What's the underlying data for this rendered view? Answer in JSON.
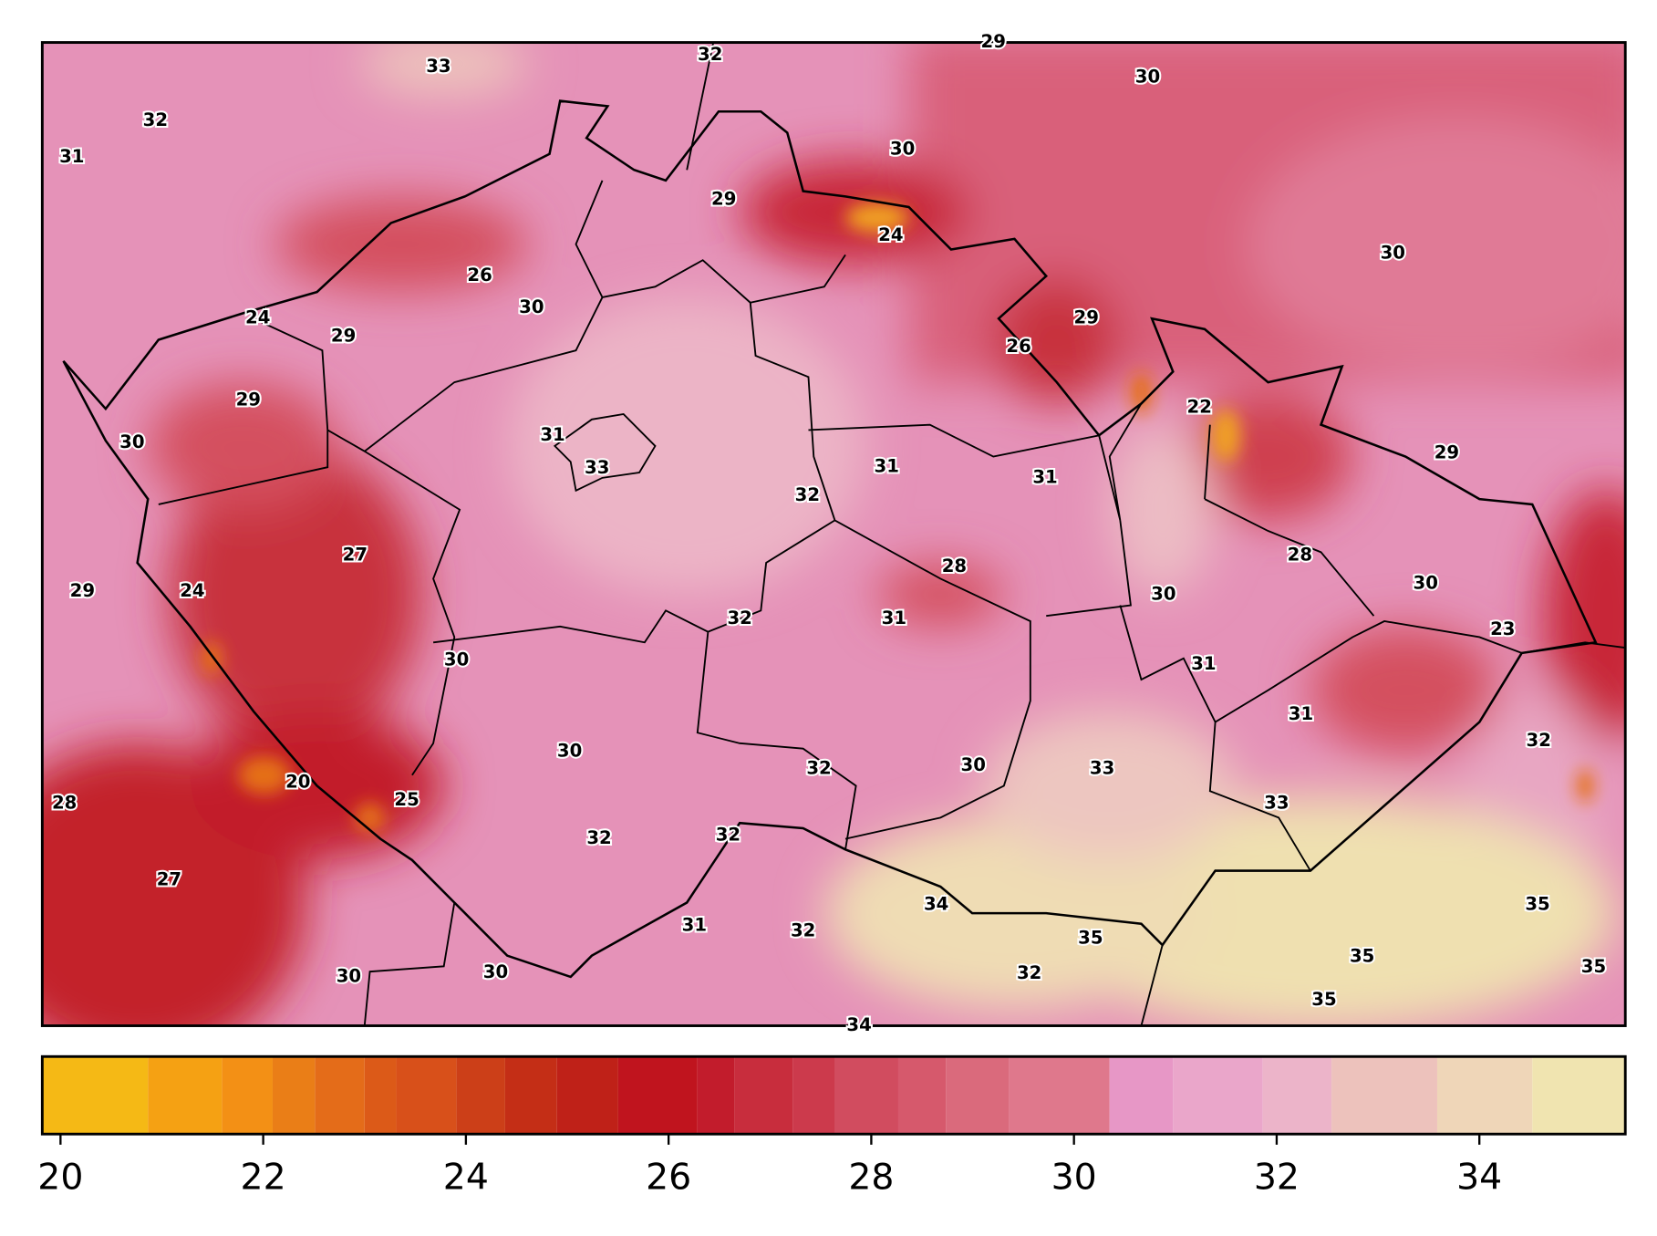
{
  "labels": [
    33,
    32,
    29,
    30,
    32,
    31,
    30,
    29,
    24,
    30,
    26,
    30,
    24,
    29,
    29,
    26,
    29,
    22,
    30,
    31,
    33,
    31,
    31,
    29,
    32,
    27,
    28,
    28,
    29,
    24,
    30,
    30,
    32,
    31,
    23,
    30,
    31,
    31,
    32,
    30,
    32,
    30,
    33,
    20,
    25,
    28,
    33,
    32,
    32,
    27,
    34,
    35,
    31,
    32,
    35,
    35,
    35,
    30,
    30,
    32,
    35,
    34
  ],
  "colorbar": {
    "lim": [
      19.82,
      35.44
    ],
    "ticks": [
      20,
      22,
      24,
      26,
      28,
      30,
      32,
      34
    ]
  }
}
